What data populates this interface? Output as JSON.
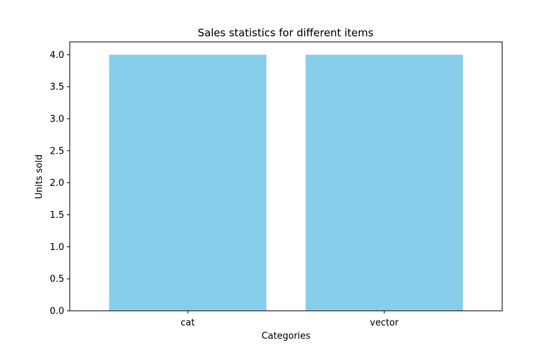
{
  "chart_data": {
    "type": "bar",
    "title": "Sales statistics for different items",
    "xlabel": "Categories",
    "ylabel": "Units sold",
    "categories": [
      "cat",
      "vector"
    ],
    "values": [
      4,
      4
    ],
    "ylim": [
      0,
      4.2
    ],
    "yticks": [
      "0.0",
      "0.5",
      "1.0",
      "1.5",
      "2.0",
      "2.5",
      "3.0",
      "3.5",
      "4.0"
    ],
    "bar_color": "#87ceeb",
    "grid": false,
    "legend": "none"
  }
}
